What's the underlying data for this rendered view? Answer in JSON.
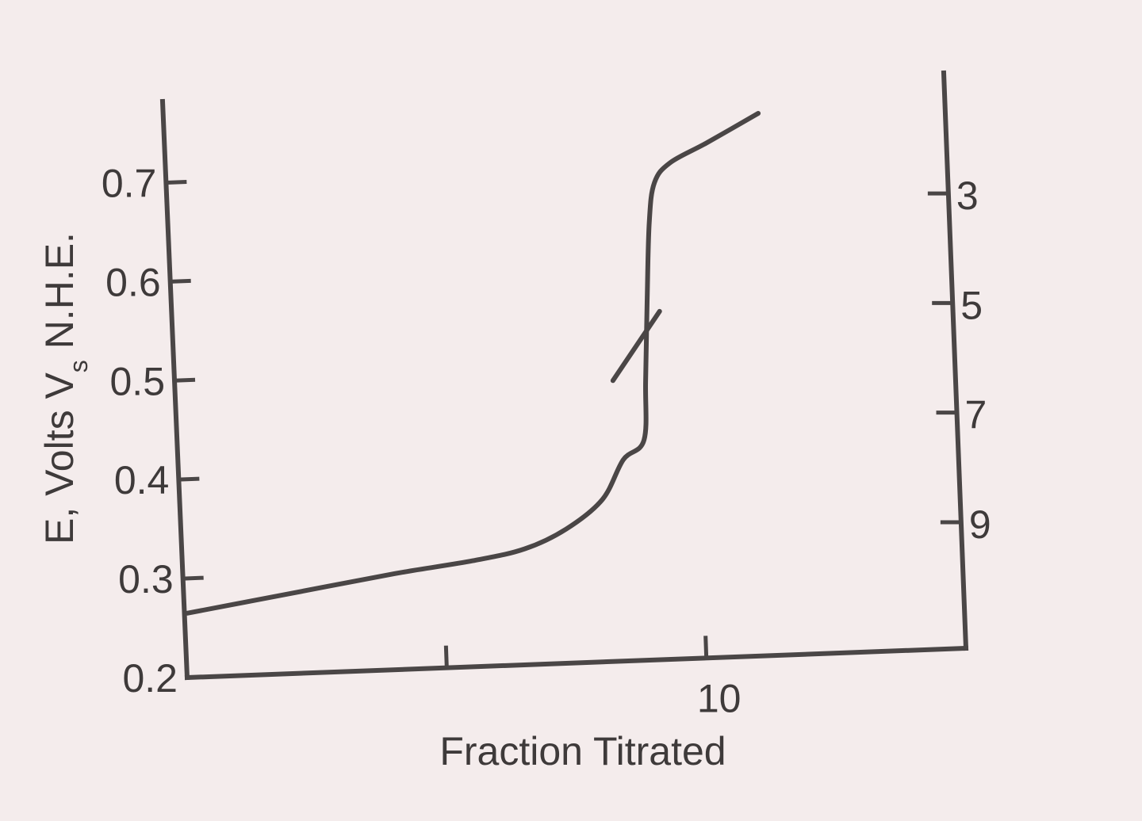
{
  "chart_data": {
    "type": "line",
    "title": "",
    "xlabel": "Fraction Titrated",
    "ylabel": "E, Volts V",
    "ylabel_sub": "s",
    "ylabel_tail": " N.H.E.",
    "x_ticks": [
      {
        "value": 5,
        "label": ""
      },
      {
        "value": 10,
        "label": "10"
      }
    ],
    "xlim": [
      0,
      15
    ],
    "ylim": [
      0.2,
      0.75
    ],
    "y_ticks": [
      {
        "value": 0.2,
        "label": "0.2"
      },
      {
        "value": 0.3,
        "label": "0.3"
      },
      {
        "value": 0.4,
        "label": "0.4"
      },
      {
        "value": 0.5,
        "label": "0.5"
      },
      {
        "value": 0.6,
        "label": "0.6"
      },
      {
        "value": 0.7,
        "label": "0.7"
      }
    ],
    "y2_ticks": [
      {
        "value": 3,
        "label": "3"
      },
      {
        "value": 5,
        "label": "5"
      },
      {
        "value": 7,
        "label": "7"
      },
      {
        "value": 9,
        "label": "9"
      }
    ],
    "y2lim": [
      11.3,
      0.8
    ],
    "series": [
      {
        "x": [
          0,
          2,
          4,
          5.5,
          6.5,
          7.3,
          8.0,
          8.4,
          8.8,
          8.83,
          8.86,
          8.9,
          9.0,
          9.3,
          10.0,
          11.0
        ],
        "y": [
          0.265,
          0.285,
          0.305,
          0.318,
          0.33,
          0.35,
          0.38,
          0.42,
          0.44,
          0.5,
          0.58,
          0.66,
          0.7,
          0.72,
          0.74,
          0.77
        ]
      }
    ],
    "equivalence_marker": {
      "x": [
        8.2,
        9.1
      ],
      "y": [
        0.5,
        0.57
      ]
    },
    "grid": false,
    "legend": "none"
  }
}
